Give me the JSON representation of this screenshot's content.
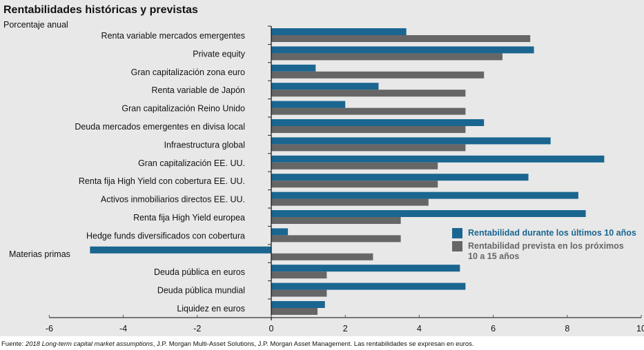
{
  "header": {
    "title": "Rentabilidades históricas y previstas",
    "subtitle": "Porcentaje anual"
  },
  "footer": {
    "prefix": "Fuente: ",
    "source_italic": "2018 Long-term capital market assumptions",
    "suffix": ", J.P. Morgan Multi-Asset Solutions, J.P. Morgan Asset Management. Las rentabilidades se expresan en euros."
  },
  "colors": {
    "historical": "#1a6690",
    "projected": "#666666",
    "background": "#e8e8e8"
  },
  "chart_data": {
    "type": "bar",
    "orientation": "horizontal",
    "title": "Rentabilidades históricas y previstas",
    "subtitle": "Porcentaje anual",
    "xlabel": "",
    "ylabel": "",
    "xlim": [
      -6,
      10
    ],
    "xticks": [
      -6,
      -4,
      -2,
      0,
      2,
      4,
      6,
      8,
      10
    ],
    "xtick_labels": [
      "-6",
      "-4",
      "-2",
      "0",
      "2",
      "4",
      "6",
      "8",
      "10"
    ],
    "grid": false,
    "legend_position": "right-middle",
    "categories": [
      "Renta variable mercados emergentes",
      "Private equity",
      "Gran capitalización zona euro",
      "Renta variable de Japón",
      "Gran capitalización Reino Unido",
      "Deuda mercados emergentes en divisa local",
      "Infraestructura global",
      "Gran capitalización EE. UU.",
      "Renta fija High Yield con cobertura EE. UU.",
      "Activos inmobiliarios directos EE. UU.",
      "Renta fija High Yield europea",
      "Hedge funds diversificados con cobertura",
      "Materias primas",
      "Deuda pública en euros",
      "Deuda pública mundial",
      "Liquidez en euros"
    ],
    "series": [
      {
        "name": "Rentabilidad durante los últimos 10 años",
        "color": "#1a6690",
        "values": [
          3.65,
          7.1,
          1.2,
          2.9,
          2.0,
          5.75,
          7.55,
          9.0,
          6.95,
          8.3,
          8.5,
          0.45,
          -4.9,
          5.1,
          5.25,
          1.45
        ]
      },
      {
        "name": "Rentabilidad prevista en los próximos 10 a 15 años",
        "color": "#666666",
        "values": [
          7.0,
          6.25,
          5.75,
          5.25,
          5.25,
          5.25,
          5.25,
          4.5,
          4.5,
          4.25,
          3.5,
          3.5,
          2.75,
          1.5,
          1.5,
          1.25
        ]
      }
    ]
  },
  "legend": {
    "items": [
      {
        "label": "Rentabilidad durante los últimos 10 años"
      },
      {
        "label_line1": "Rentabilidad prevista en los próximos",
        "label_line2": "10 a 15 años"
      }
    ]
  }
}
